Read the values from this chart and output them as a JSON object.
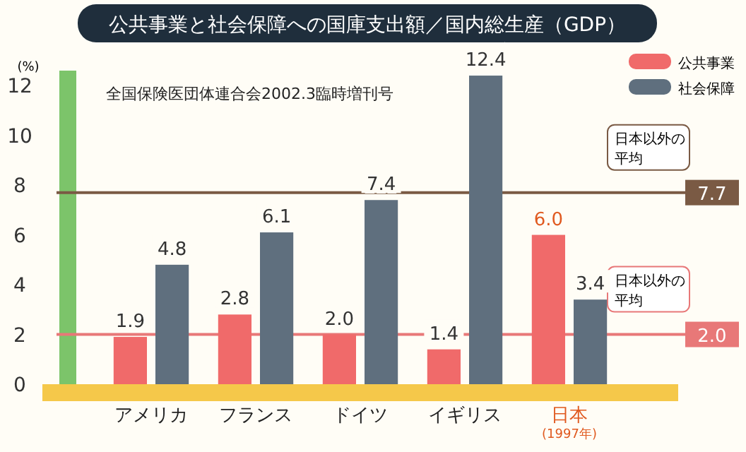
{
  "chart_data": {
    "type": "bar",
    "title": "公共事業と社会保障への国庫支出額／国内総生産（GDP）",
    "ylabel": "(%)",
    "categories": [
      "アメリカ",
      "フランス",
      "ドイツ",
      "イギリス",
      "日本(1997年)"
    ],
    "series": [
      {
        "name": "公共事業",
        "color": "#f06a6a",
        "values": [
          1.9,
          2.8,
          2.0,
          1.4,
          6.0
        ],
        "value_labels": [
          "1.9",
          "2.8",
          "2.0",
          "1.4",
          "6.0"
        ]
      },
      {
        "name": "社会保障",
        "color": "#5f6f7e",
        "values": [
          4.8,
          6.1,
          7.4,
          12.4,
          3.4
        ],
        "value_labels": [
          "4.8",
          "6.1",
          "7.4",
          "12.4",
          "3.4"
        ]
      }
    ],
    "ylim": [
      0,
      12.6
    ],
    "yticks": [
      0,
      2,
      4,
      6,
      8,
      10,
      12
    ],
    "legend": "top right",
    "ref_lines": [
      {
        "axis": "y",
        "value": 7.7,
        "label": "日本以外の平均",
        "color": "#7a5a44"
      },
      {
        "axis": "y",
        "value": 2.0,
        "label": "日本以外の平均",
        "color": "#e87878"
      }
    ],
    "annotations": [
      "全国保険医団体連合会2002.3臨時増刊号",
      {
        "text": "7.7",
        "y": 7.7
      },
      {
        "text": "2.0",
        "y": 2.0
      }
    ]
  }
}
